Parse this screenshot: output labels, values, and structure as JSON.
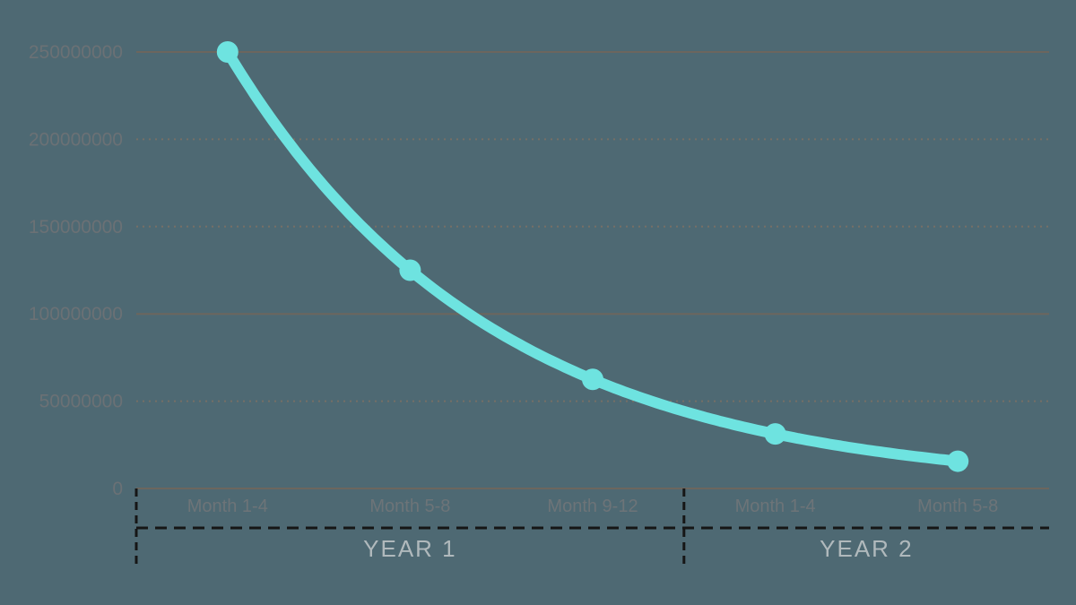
{
  "chart_data": {
    "type": "line",
    "title": "",
    "categories": [
      "Month 1-4",
      "Month 5-8",
      "Month 9-12",
      "Month 1-4",
      "Month 5-8"
    ],
    "values": [
      250000000,
      125000000,
      62500000,
      31250000,
      15625000
    ],
    "x_groups": [
      {
        "label": "YEAR 1",
        "span": 3
      },
      {
        "label": "YEAR 2",
        "span": 2
      }
    ],
    "y_ticks": [
      {
        "label": "250000000",
        "value": 250000000,
        "gridline": "solid"
      },
      {
        "label": "200000000",
        "value": 200000000,
        "gridline": "dotted"
      },
      {
        "label": "150000000",
        "value": 150000000,
        "gridline": "dotted"
      },
      {
        "label": "100000000",
        "value": 100000000,
        "gridline": "solid"
      },
      {
        "label": "50000000",
        "value": 50000000,
        "gridline": "dotted"
      },
      {
        "label": "0",
        "value": 0,
        "gridline": "solid"
      }
    ],
    "ylim": [
      0,
      250000000
    ],
    "xlabel": "",
    "ylabel": "",
    "legend": "none",
    "grid": "horizontal",
    "line_interpolation": "smooth-exponential",
    "marker": "circle",
    "colors": {
      "background": "#4e6973",
      "series": "#6ee3e0",
      "grid_solid": "#6c665e",
      "grid_dotted": "#766f66",
      "axis_text": "#6b7175",
      "year_text": "#b0b9bc",
      "separator": "#161616"
    }
  }
}
